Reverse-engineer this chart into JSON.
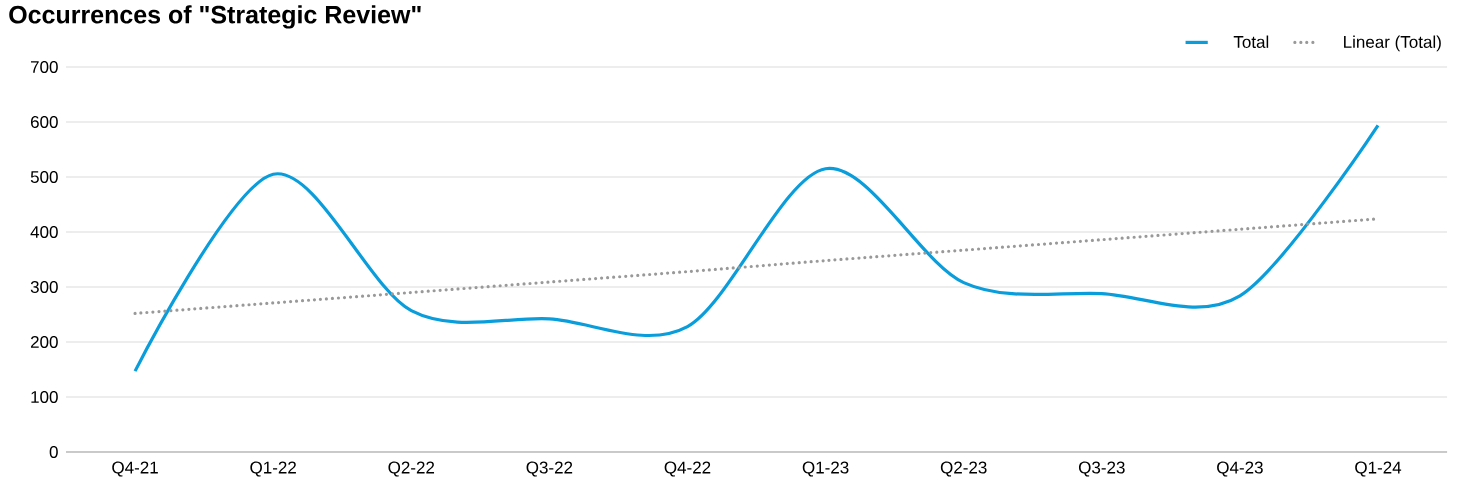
{
  "chart_data": {
    "type": "line",
    "title": "Occurrences of \"Strategic Review\"",
    "categories": [
      "Q4-21",
      "Q1-22",
      "Q2-22",
      "Q3-22",
      "Q4-22",
      "Q1-23",
      "Q2-23",
      "Q3-23",
      "Q4-23",
      "Q1-24"
    ],
    "series": [
      {
        "name": "Total",
        "color": "#0a9ddb",
        "values": [
          147,
          505,
          257,
          242,
          228,
          515,
          308,
          288,
          284,
          594
        ],
        "line_style": "solid"
      },
      {
        "name": "Linear (Total)",
        "color": "#999999",
        "type": "line",
        "values": [
          252,
          271,
          290,
          309,
          328,
          348,
          367,
          386,
          405,
          424
        ],
        "line_style": "dotted"
      }
    ],
    "ylim": [
      0,
      700
    ],
    "yticks": [
      0,
      100,
      200,
      300,
      400,
      500,
      600,
      700
    ],
    "grid": "y",
    "legend": "top right",
    "marker": "none"
  }
}
